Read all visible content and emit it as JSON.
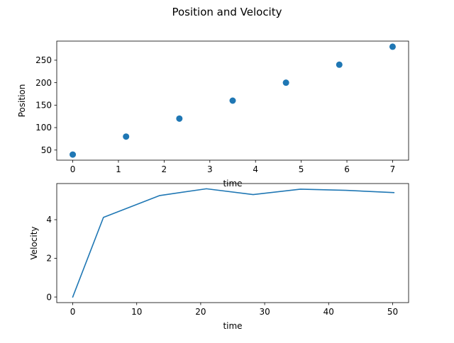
{
  "figure": {
    "suptitle": "Position and Velocity"
  },
  "colors": {
    "series": "#1f77b4",
    "axes": "#000000",
    "background": "#ffffff"
  },
  "chart_data": [
    {
      "type": "scatter",
      "title": "",
      "xlabel": "time",
      "ylabel": "Position",
      "xlim": [
        -0.35,
        7.35
      ],
      "ylim": [
        27.5,
        292.5
      ],
      "xticks": [
        0,
        1,
        2,
        3,
        4,
        5,
        6,
        7
      ],
      "yticks": [
        50,
        100,
        150,
        200,
        250
      ],
      "grid": false,
      "series": [
        {
          "x": [
            0,
            1.1667,
            2.3333,
            3.5,
            4.6667,
            5.8333,
            7
          ],
          "y": [
            40,
            80,
            120,
            160,
            200,
            240,
            280
          ]
        }
      ]
    },
    {
      "type": "line",
      "title": "",
      "xlabel": "time",
      "ylabel": "Velocity",
      "xlim": [
        -2.5,
        52.5
      ],
      "ylim": [
        -0.29,
        5.87
      ],
      "xticks": [
        0,
        10,
        20,
        30,
        40,
        50
      ],
      "yticks": [
        0,
        2,
        4
      ],
      "grid": false,
      "series": [
        {
          "x": [
            0,
            4.8,
            13.6,
            20.9,
            28.2,
            35.6,
            42.7,
            50.2
          ],
          "y": [
            0,
            4.12,
            5.25,
            5.6,
            5.3,
            5.58,
            5.52,
            5.4
          ]
        }
      ]
    }
  ]
}
